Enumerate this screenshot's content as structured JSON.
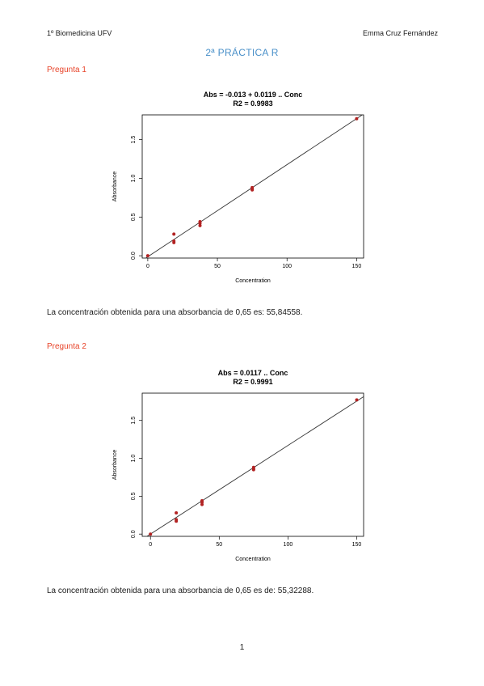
{
  "header": {
    "left": "1º Biomedicina UFV",
    "right": "Emma Cruz Fernández"
  },
  "title": "2ª PRÁCTICA R",
  "sections": [
    {
      "heading": "Pregunta 1",
      "text": "La concentración obtenida para una absorbancia de 0,65 es: 55,84558."
    },
    {
      "heading": "Pregunta 2",
      "text": "La concentración obtenida para una absorbancia de 0,65 es de: 55,32288."
    }
  ],
  "page_number": "1",
  "colors": {
    "title": "#4a90c9",
    "heading": "#e8442a",
    "point": "#b22222"
  },
  "chart_data": [
    {
      "type": "scatter",
      "title": "Abs = -0.013 + 0.0119 .. Conc",
      "subtitle": "R2 = 0.9983",
      "xlabel": "Concentration",
      "ylabel": "Absorbance",
      "xlim": [
        -4,
        155
      ],
      "ylim": [
        -0.03,
        1.82
      ],
      "xticks": [
        0,
        50,
        100,
        150
      ],
      "yticks": [
        0.0,
        0.5,
        1.0,
        1.5
      ],
      "xtick_labels": [
        "0",
        "50",
        "100",
        "150"
      ],
      "ytick_labels": [
        "0.0",
        "0.5",
        "1.0",
        "1.5"
      ],
      "points": [
        {
          "x": 0,
          "y": 0.0
        },
        {
          "x": 18.75,
          "y": 0.28
        },
        {
          "x": 18.75,
          "y": 0.19
        },
        {
          "x": 18.75,
          "y": 0.17
        },
        {
          "x": 37.5,
          "y": 0.44
        },
        {
          "x": 37.5,
          "y": 0.42
        },
        {
          "x": 37.5,
          "y": 0.39
        },
        {
          "x": 75,
          "y": 0.88
        },
        {
          "x": 75,
          "y": 0.86
        },
        {
          "x": 75,
          "y": 0.85
        },
        {
          "x": 150,
          "y": 1.77
        }
      ],
      "fit": {
        "intercept": -0.013,
        "slope": 0.0119
      },
      "grid": false,
      "legend": "none"
    },
    {
      "type": "scatter",
      "title": "Abs = 0.0117 .. Conc",
      "subtitle": "R2 = 0.9991",
      "xlabel": "Concentration",
      "ylabel": "Absorbance",
      "xlim": [
        -6,
        155
      ],
      "ylim": [
        -0.03,
        1.86
      ],
      "xticks": [
        0,
        50,
        100,
        150
      ],
      "yticks": [
        0.0,
        0.5,
        1.0,
        1.5
      ],
      "xtick_labels": [
        "0",
        "50",
        "100",
        "150"
      ],
      "ytick_labels": [
        "0.0",
        "0.5",
        "1.0",
        "1.5"
      ],
      "points": [
        {
          "x": 0,
          "y": 0.0
        },
        {
          "x": 18.75,
          "y": 0.28
        },
        {
          "x": 18.75,
          "y": 0.19
        },
        {
          "x": 18.75,
          "y": 0.17
        },
        {
          "x": 37.5,
          "y": 0.44
        },
        {
          "x": 37.5,
          "y": 0.42
        },
        {
          "x": 37.5,
          "y": 0.39
        },
        {
          "x": 75,
          "y": 0.88
        },
        {
          "x": 75,
          "y": 0.86
        },
        {
          "x": 75,
          "y": 0.85
        },
        {
          "x": 150,
          "y": 1.77
        }
      ],
      "fit": {
        "intercept": 0,
        "slope": 0.0117
      },
      "grid": false,
      "legend": "none"
    }
  ]
}
